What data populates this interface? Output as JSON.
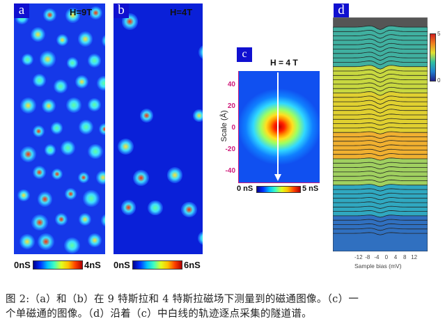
{
  "panels": {
    "a": {
      "label": "a",
      "field": "H=9T",
      "cbar_min": "0nS",
      "cbar_max": "4nS"
    },
    "b": {
      "label": "b",
      "field": "H=4T",
      "cbar_min": "0nS",
      "cbar_max": "6nS"
    },
    "c": {
      "label": "c",
      "field": "H = 4 T",
      "ylabel": "Scale (Å)",
      "yticks": [
        "40",
        "20",
        "0",
        "-20",
        "-40"
      ],
      "cbar_min": "0 nS",
      "cbar_max": "5 nS"
    },
    "d": {
      "label": "d",
      "xticks": [
        "-12",
        "-8",
        "-4",
        "0",
        "4",
        "8",
        "12"
      ],
      "xlabel": "Sample bias (mV)",
      "cbar_max": "5",
      "cbar_min": "0"
    }
  },
  "caption": {
    "line1": "图 2:（a）和（b）在 9 特斯拉和 4 特斯拉磁场下测量到的磁通图像。（c）一",
    "line2": "个单磁通的图像。（d）沿着（c）中白线的轨迹逐点采集的隧道谱。"
  }
}
